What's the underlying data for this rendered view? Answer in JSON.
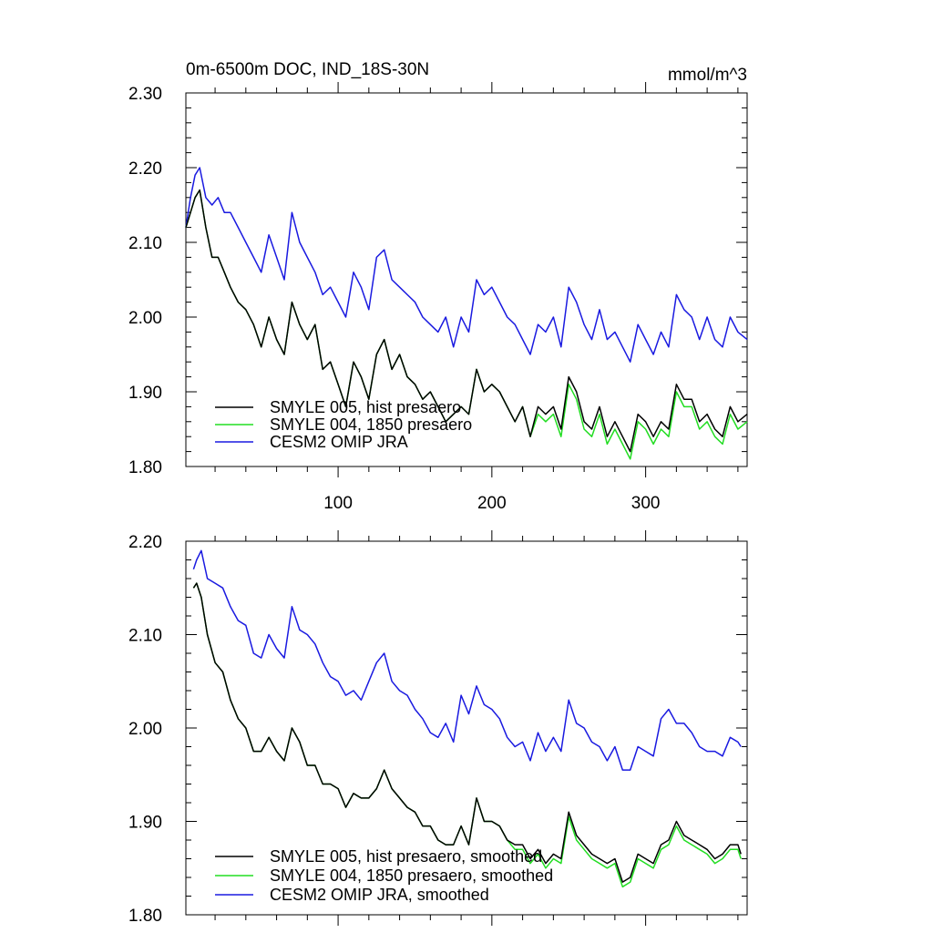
{
  "figure": {
    "title_left": "0m-6500m DOC, IND_18S-30N",
    "title_right": "mmol/m^3"
  },
  "colors": {
    "hist": "#000000",
    "p1850": "#22dd22",
    "omip": "#1a1ae0"
  },
  "chart_data": [
    {
      "type": "line",
      "xlim": [
        1,
        366
      ],
      "ylim": [
        1.8,
        2.3
      ],
      "xticks": [
        100,
        200,
        300
      ],
      "xtick_labels": [
        "100",
        "200",
        "300"
      ],
      "yticks": [
        1.8,
        1.9,
        2.0,
        2.1,
        2.2,
        2.3
      ],
      "ytick_labels": [
        "1.80",
        "1.90",
        "2.00",
        "2.10",
        "2.20",
        "2.30"
      ],
      "legend_position": "bottom-left",
      "series": [
        {
          "name": "SMYLE 005, hist presaero",
          "key": "hist",
          "x": [
            1,
            4,
            7,
            10,
            14,
            18,
            22,
            26,
            30,
            35,
            40,
            45,
            50,
            55,
            60,
            65,
            70,
            75,
            80,
            85,
            90,
            95,
            100,
            105,
            110,
            115,
            120,
            125,
            130,
            135,
            140,
            145,
            150,
            155,
            160,
            165,
            170,
            175,
            180,
            185,
            190,
            195,
            200,
            205,
            210,
            215,
            220,
            225,
            230,
            235,
            240,
            245,
            250,
            255,
            260,
            265,
            270,
            275,
            280,
            285,
            290,
            295,
            300,
            305,
            310,
            315,
            320,
            325,
            330,
            335,
            340,
            345,
            350,
            355,
            360,
            366
          ],
          "y": [
            2.12,
            2.14,
            2.16,
            2.17,
            2.12,
            2.08,
            2.08,
            2.06,
            2.04,
            2.02,
            2.01,
            1.99,
            1.96,
            2.0,
            1.97,
            1.95,
            2.02,
            1.99,
            1.97,
            1.99,
            1.93,
            1.94,
            1.91,
            1.88,
            1.94,
            1.92,
            1.89,
            1.95,
            1.97,
            1.93,
            1.95,
            1.92,
            1.91,
            1.89,
            1.9,
            1.88,
            1.86,
            1.87,
            1.88,
            1.87,
            1.93,
            1.9,
            1.91,
            1.9,
            1.88,
            1.86,
            1.88,
            1.84,
            1.88,
            1.87,
            1.88,
            1.85,
            1.92,
            1.9,
            1.86,
            1.85,
            1.88,
            1.84,
            1.86,
            1.84,
            1.82,
            1.87,
            1.86,
            1.84,
            1.86,
            1.85,
            1.91,
            1.89,
            1.89,
            1.86,
            1.87,
            1.85,
            1.84,
            1.88,
            1.86,
            1.87
          ]
        },
        {
          "name": "SMYLE 004, 1850 presaero",
          "key": "p1850",
          "x": [
            1,
            4,
            7,
            10,
            14,
            18,
            22,
            26,
            30,
            35,
            40,
            45,
            50,
            55,
            60,
            65,
            70,
            75,
            80,
            85,
            90,
            95,
            100,
            105,
            110,
            115,
            120,
            125,
            130,
            135,
            140,
            145,
            150,
            155,
            160,
            165,
            170,
            175,
            180,
            185,
            190,
            195,
            200,
            205,
            210,
            215,
            220,
            225,
            230,
            235,
            240,
            245,
            250,
            255,
            260,
            265,
            270,
            275,
            280,
            285,
            290,
            295,
            300,
            305,
            310,
            315,
            320,
            325,
            330,
            335,
            340,
            345,
            350,
            355,
            360,
            366
          ],
          "y": [
            2.12,
            2.14,
            2.16,
            2.17,
            2.12,
            2.08,
            2.08,
            2.06,
            2.04,
            2.02,
            2.01,
            1.99,
            1.96,
            2.0,
            1.97,
            1.95,
            2.02,
            1.99,
            1.97,
            1.99,
            1.93,
            1.94,
            1.91,
            1.88,
            1.94,
            1.92,
            1.89,
            1.95,
            1.97,
            1.93,
            1.95,
            1.92,
            1.91,
            1.89,
            1.9,
            1.88,
            1.86,
            1.87,
            1.88,
            1.87,
            1.93,
            1.9,
            1.91,
            1.9,
            1.88,
            1.86,
            1.88,
            1.84,
            1.87,
            1.86,
            1.87,
            1.84,
            1.91,
            1.89,
            1.85,
            1.84,
            1.87,
            1.83,
            1.85,
            1.83,
            1.81,
            1.86,
            1.85,
            1.83,
            1.85,
            1.84,
            1.9,
            1.88,
            1.88,
            1.85,
            1.86,
            1.84,
            1.83,
            1.87,
            1.85,
            1.86
          ]
        },
        {
          "name": "CESM2 OMIP JRA",
          "key": "omip",
          "x": [
            1,
            4,
            7,
            10,
            14,
            18,
            22,
            26,
            30,
            35,
            40,
            45,
            50,
            55,
            60,
            65,
            70,
            75,
            80,
            85,
            90,
            95,
            100,
            105,
            110,
            115,
            120,
            125,
            130,
            135,
            140,
            145,
            150,
            155,
            160,
            165,
            170,
            175,
            180,
            185,
            190,
            195,
            200,
            205,
            210,
            215,
            220,
            225,
            230,
            235,
            240,
            245,
            250,
            255,
            260,
            265,
            270,
            275,
            280,
            285,
            290,
            295,
            300,
            305,
            310,
            315,
            320,
            325,
            330,
            335,
            340,
            345,
            350,
            355,
            360,
            366
          ],
          "y": [
            2.12,
            2.16,
            2.19,
            2.2,
            2.16,
            2.15,
            2.16,
            2.14,
            2.14,
            2.12,
            2.1,
            2.08,
            2.06,
            2.11,
            2.08,
            2.05,
            2.14,
            2.1,
            2.08,
            2.06,
            2.03,
            2.04,
            2.02,
            2.0,
            2.06,
            2.04,
            2.01,
            2.08,
            2.09,
            2.05,
            2.04,
            2.03,
            2.02,
            2.0,
            1.99,
            1.98,
            2.0,
            1.96,
            2.0,
            1.98,
            2.05,
            2.03,
            2.04,
            2.02,
            2.0,
            1.99,
            1.97,
            1.95,
            1.99,
            1.98,
            2.0,
            1.96,
            2.04,
            2.02,
            1.99,
            1.97,
            2.01,
            1.97,
            1.98,
            1.96,
            1.94,
            1.99,
            1.97,
            1.95,
            1.98,
            1.96,
            2.03,
            2.01,
            2.0,
            1.97,
            2.0,
            1.97,
            1.96,
            2.0,
            1.98,
            1.97
          ]
        }
      ]
    },
    {
      "type": "line",
      "xlim": [
        1,
        366
      ],
      "ylim": [
        1.8,
        2.2
      ],
      "xticks": [
        100,
        200,
        300
      ],
      "yticks": [
        1.8,
        1.9,
        2.0,
        2.1,
        2.2
      ],
      "ytick_labels": [
        "1.80",
        "1.90",
        "2.00",
        "2.10",
        "2.20"
      ],
      "legend_position": "bottom-left",
      "series": [
        {
          "name": "SMYLE 005, hist presaero, smoothed",
          "key": "hist",
          "x": [
            6,
            8,
            11,
            15,
            20,
            25,
            30,
            35,
            40,
            45,
            50,
            55,
            60,
            65,
            70,
            75,
            80,
            85,
            90,
            95,
            100,
            105,
            110,
            115,
            120,
            125,
            130,
            135,
            140,
            145,
            150,
            155,
            160,
            165,
            170,
            175,
            180,
            185,
            190,
            195,
            200,
            205,
            210,
            215,
            220,
            225,
            230,
            235,
            240,
            245,
            250,
            255,
            260,
            265,
            270,
            275,
            280,
            285,
            290,
            295,
            300,
            305,
            310,
            315,
            320,
            325,
            330,
            335,
            340,
            345,
            350,
            355,
            360,
            362
          ],
          "y": [
            2.15,
            2.155,
            2.14,
            2.1,
            2.07,
            2.06,
            2.03,
            2.01,
            2.0,
            1.975,
            1.975,
            1.99,
            1.975,
            1.965,
            2.0,
            1.985,
            1.96,
            1.96,
            1.94,
            1.94,
            1.935,
            1.915,
            1.93,
            1.925,
            1.925,
            1.935,
            1.955,
            1.935,
            1.925,
            1.915,
            1.91,
            1.895,
            1.895,
            1.88,
            1.875,
            1.875,
            1.895,
            1.875,
            1.925,
            1.9,
            1.9,
            1.895,
            1.88,
            1.875,
            1.875,
            1.86,
            1.87,
            1.855,
            1.865,
            1.86,
            1.91,
            1.885,
            1.875,
            1.865,
            1.86,
            1.855,
            1.86,
            1.835,
            1.84,
            1.865,
            1.86,
            1.855,
            1.875,
            1.88,
            1.9,
            1.885,
            1.88,
            1.875,
            1.87,
            1.86,
            1.865,
            1.875,
            1.875,
            1.865
          ]
        },
        {
          "name": "SMYLE 004, 1850 presaero, smoothed",
          "key": "p1850",
          "x": [
            6,
            8,
            11,
            15,
            20,
            25,
            30,
            35,
            40,
            45,
            50,
            55,
            60,
            65,
            70,
            75,
            80,
            85,
            90,
            95,
            100,
            105,
            110,
            115,
            120,
            125,
            130,
            135,
            140,
            145,
            150,
            155,
            160,
            165,
            170,
            175,
            180,
            185,
            190,
            195,
            200,
            205,
            210,
            215,
            220,
            225,
            230,
            235,
            240,
            245,
            250,
            255,
            260,
            265,
            270,
            275,
            280,
            285,
            290,
            295,
            300,
            305,
            310,
            315,
            320,
            325,
            330,
            335,
            340,
            345,
            350,
            355,
            360,
            362
          ],
          "y": [
            2.15,
            2.155,
            2.14,
            2.1,
            2.07,
            2.06,
            2.03,
            2.01,
            2.0,
            1.975,
            1.975,
            1.99,
            1.975,
            1.965,
            2.0,
            1.985,
            1.96,
            1.96,
            1.94,
            1.94,
            1.935,
            1.915,
            1.93,
            1.925,
            1.925,
            1.935,
            1.955,
            1.935,
            1.925,
            1.915,
            1.91,
            1.895,
            1.895,
            1.88,
            1.875,
            1.875,
            1.895,
            1.875,
            1.925,
            1.9,
            1.9,
            1.895,
            1.88,
            1.87,
            1.87,
            1.855,
            1.865,
            1.85,
            1.86,
            1.855,
            1.905,
            1.88,
            1.87,
            1.86,
            1.855,
            1.85,
            1.855,
            1.83,
            1.835,
            1.86,
            1.855,
            1.85,
            1.87,
            1.875,
            1.895,
            1.88,
            1.875,
            1.87,
            1.865,
            1.855,
            1.86,
            1.87,
            1.87,
            1.86
          ]
        },
        {
          "name": "CESM2 OMIP JRA, smoothed",
          "key": "omip",
          "x": [
            6,
            8,
            11,
            15,
            20,
            25,
            30,
            35,
            40,
            45,
            50,
            55,
            60,
            65,
            70,
            75,
            80,
            85,
            90,
            95,
            100,
            105,
            110,
            115,
            120,
            125,
            130,
            135,
            140,
            145,
            150,
            155,
            160,
            165,
            170,
            175,
            180,
            185,
            190,
            195,
            200,
            205,
            210,
            215,
            220,
            225,
            230,
            235,
            240,
            245,
            250,
            255,
            260,
            265,
            270,
            275,
            280,
            285,
            290,
            295,
            300,
            305,
            310,
            315,
            320,
            325,
            330,
            335,
            340,
            345,
            350,
            355,
            360,
            362
          ],
          "y": [
            2.17,
            2.18,
            2.19,
            2.16,
            2.155,
            2.15,
            2.13,
            2.115,
            2.11,
            2.08,
            2.075,
            2.1,
            2.085,
            2.075,
            2.13,
            2.105,
            2.1,
            2.09,
            2.07,
            2.055,
            2.05,
            2.035,
            2.04,
            2.03,
            2.05,
            2.07,
            2.08,
            2.05,
            2.04,
            2.035,
            2.02,
            2.01,
            1.995,
            1.99,
            2.005,
            1.985,
            2.035,
            2.015,
            2.045,
            2.025,
            2.02,
            2.01,
            1.99,
            1.98,
            1.985,
            1.965,
            1.995,
            1.975,
            1.99,
            1.975,
            2.03,
            2.005,
            2.0,
            1.985,
            1.98,
            1.965,
            1.98,
            1.955,
            1.955,
            1.98,
            1.975,
            1.97,
            2.01,
            2.02,
            2.005,
            2.005,
            1.995,
            1.98,
            1.975,
            1.975,
            1.97,
            1.99,
            1.985,
            1.98
          ]
        }
      ]
    }
  ]
}
